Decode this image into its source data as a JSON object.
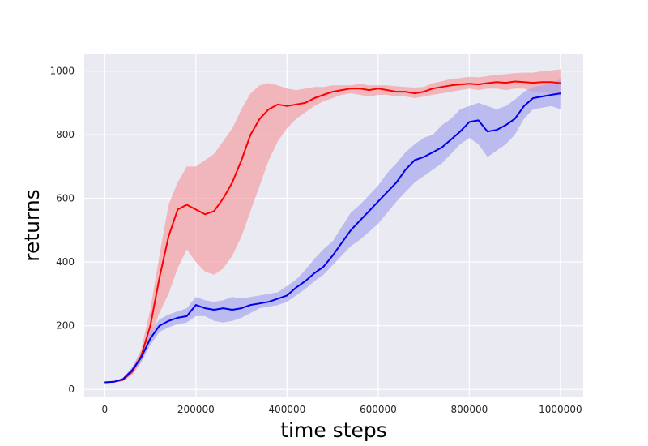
{
  "chart_data": {
    "type": "line",
    "title": "",
    "xlabel": "time steps",
    "ylabel": "returns",
    "xlim": [
      -45000,
      1050000
    ],
    "ylim": [
      -25,
      1055
    ],
    "xticks": [
      0,
      200000,
      400000,
      600000,
      800000,
      1000000
    ],
    "xtick_labels": [
      "0",
      "200000",
      "400000",
      "600000",
      "800000",
      "1000000"
    ],
    "yticks": [
      0,
      200,
      400,
      600,
      800,
      1000
    ],
    "ytick_labels": [
      "0",
      "200",
      "400",
      "600",
      "800",
      "1000"
    ],
    "grid": true,
    "legend": "none",
    "background": "#eaeaf2",
    "x": [
      0,
      20000,
      40000,
      60000,
      80000,
      100000,
      120000,
      140000,
      160000,
      180000,
      200000,
      220000,
      240000,
      260000,
      280000,
      300000,
      320000,
      340000,
      360000,
      380000,
      400000,
      420000,
      440000,
      460000,
      480000,
      500000,
      520000,
      540000,
      560000,
      580000,
      600000,
      620000,
      640000,
      660000,
      680000,
      700000,
      720000,
      740000,
      760000,
      780000,
      800000,
      820000,
      840000,
      860000,
      880000,
      900000,
      920000,
      940000,
      960000,
      980000,
      1000000
    ],
    "series": [
      {
        "color": "#ff0000",
        "band_color": "#f4a0a5",
        "values": [
          22,
          24,
          30,
          55,
          105,
          200,
          350,
          480,
          565,
          580,
          565,
          550,
          560,
          600,
          650,
          720,
          800,
          850,
          880,
          895,
          890,
          895,
          900,
          915,
          925,
          935,
          940,
          945,
          945,
          940,
          945,
          940,
          935,
          935,
          930,
          935,
          945,
          950,
          955,
          958,
          960,
          958,
          962,
          965,
          963,
          967,
          965,
          963,
          965,
          965,
          962
        ],
        "lower": [
          20,
          22,
          25,
          45,
          85,
          160,
          240,
          300,
          380,
          440,
          400,
          370,
          360,
          380,
          420,
          480,
          560,
          640,
          720,
          780,
          820,
          850,
          870,
          890,
          905,
          915,
          925,
          930,
          925,
          920,
          925,
          925,
          920,
          920,
          915,
          920,
          925,
          930,
          935,
          940,
          945,
          940,
          945,
          945,
          940,
          945,
          945,
          935,
          935,
          930,
          920
        ],
        "upper": [
          24,
          26,
          36,
          66,
          125,
          250,
          420,
          580,
          650,
          700,
          700,
          720,
          740,
          780,
          820,
          880,
          930,
          955,
          962,
          955,
          945,
          940,
          945,
          950,
          950,
          955,
          955,
          955,
          960,
          955,
          955,
          955,
          952,
          950,
          948,
          950,
          962,
          968,
          975,
          978,
          982,
          980,
          984,
          988,
          990,
          993,
          995,
          995,
          1000,
          1002,
          1005
        ]
      },
      {
        "color": "#0000ee",
        "band_color": "#a6a6f0",
        "values": [
          22,
          24,
          32,
          60,
          100,
          160,
          200,
          215,
          225,
          230,
          265,
          255,
          250,
          255,
          250,
          255,
          265,
          270,
          275,
          285,
          295,
          320,
          340,
          365,
          385,
          420,
          460,
          500,
          530,
          560,
          590,
          620,
          650,
          690,
          720,
          730,
          745,
          760,
          785,
          810,
          840,
          845,
          810,
          815,
          830,
          850,
          890,
          915,
          920,
          925,
          930
        ],
        "lower": [
          20,
          22,
          28,
          50,
          85,
          140,
          180,
          195,
          205,
          210,
          230,
          230,
          215,
          210,
          215,
          225,
          240,
          255,
          260,
          265,
          275,
          295,
          315,
          340,
          360,
          390,
          420,
          450,
          470,
          495,
          520,
          555,
          590,
          620,
          650,
          670,
          690,
          710,
          740,
          770,
          790,
          770,
          730,
          750,
          770,
          800,
          850,
          880,
          885,
          890,
          880
        ],
        "upper": [
          24,
          26,
          36,
          70,
          115,
          180,
          220,
          235,
          245,
          255,
          290,
          280,
          275,
          280,
          290,
          285,
          290,
          295,
          300,
          305,
          325,
          345,
          375,
          410,
          440,
          465,
          510,
          555,
          580,
          610,
          640,
          680,
          710,
          745,
          770,
          790,
          800,
          830,
          850,
          880,
          890,
          900,
          890,
          880,
          890,
          910,
          935,
          950,
          955,
          960,
          975
        ]
      }
    ]
  }
}
